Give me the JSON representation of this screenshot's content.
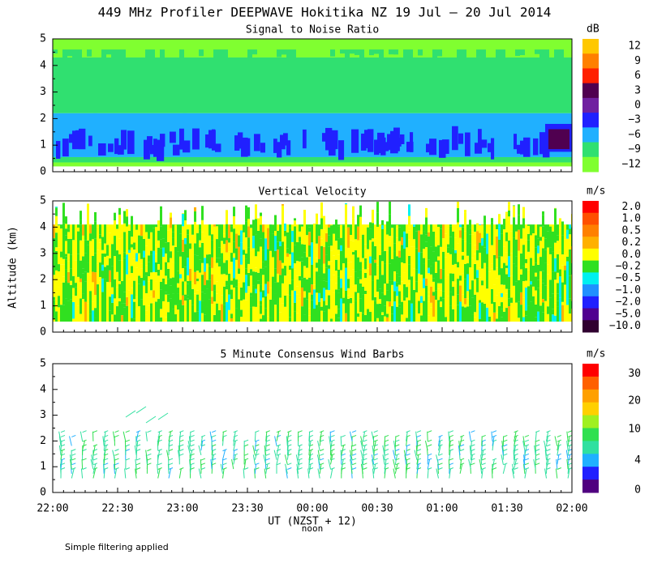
{
  "title": "449 MHz Profiler DEEPWAVE Hokitika NZ 19 Jul – 20 Jul 2014",
  "y_axis_label": "Altitude (km)",
  "yticks": [
    "0",
    "1",
    "2",
    "3",
    "4",
    "5"
  ],
  "panels": [
    {
      "title": "Signal to Noise Ratio",
      "unit": "dB",
      "colorbar": {
        "labels": [
          "12",
          "9",
          "6",
          "3",
          "0",
          "−3",
          "−6",
          "−9",
          "−12"
        ],
        "colors": [
          "#ffc800",
          "#ff8000",
          "#ff2000",
          "#500050",
          "#7020a0",
          "#2020ff",
          "#20b0ff",
          "#30e070",
          "#80ff30"
        ]
      }
    },
    {
      "title": "Vertical Velocity",
      "unit": "m/s",
      "colorbar": {
        "labels": [
          "2.0",
          "1.0",
          "0.5",
          "0.2",
          "0.0",
          "−0.2",
          "−0.5",
          "−1.0",
          "−2.0",
          "−5.0",
          "−10.0"
        ],
        "colors": [
          "#ff0000",
          "#ff5000",
          "#ff8000",
          "#ffb000",
          "#ffff00",
          "#30e020",
          "#00f0f0",
          "#2090ff",
          "#2020ff",
          "#500090",
          "#300030"
        ]
      }
    },
    {
      "title": "5 Minute Consensus Wind Barbs",
      "unit": "m/s",
      "colorbar": {
        "labels": [
          "30",
          "20",
          "10",
          "4",
          "0"
        ],
        "colors": [
          "#ff0000",
          "#ff6000",
          "#ffa000",
          "#ffd000",
          "#a0f020",
          "#30e050",
          "#30e0a0",
          "#20b0ff",
          "#2020ff",
          "#500080"
        ]
      }
    }
  ],
  "x_axis": {
    "ticks": [
      "22:00",
      "22:30",
      "23:00",
      "23:30",
      "00:00",
      "00:30",
      "01:00",
      "01:30",
      "02:00"
    ],
    "label": "UT  (NZST + 12)",
    "sublabel": "noon"
  },
  "footer": "Simple filtering applied"
}
